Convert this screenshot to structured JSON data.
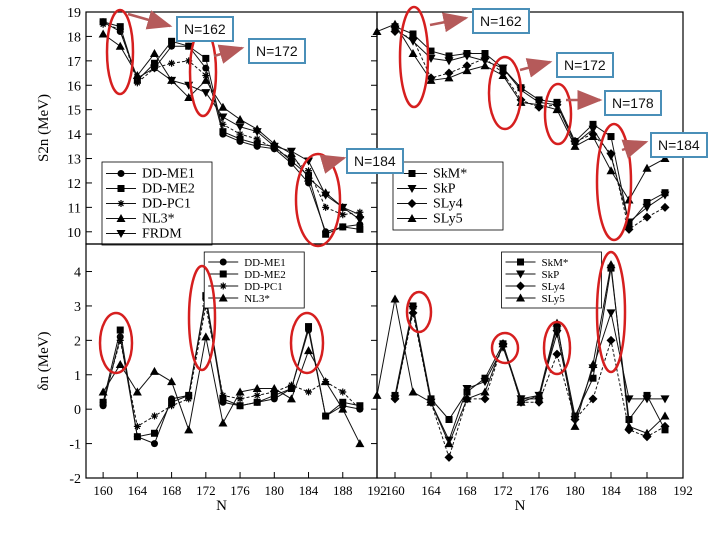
{
  "colors": {
    "ring": "#d61f1f",
    "arrow": "#b55a5a",
    "callout_border": "#4a8fb8"
  },
  "callouts": {
    "tl_162": "N=162",
    "tl_172": "N=172",
    "tl_184": "N=184",
    "tr_162": "N=162",
    "tr_172": "N=172",
    "tr_178": "N=178",
    "tr_184": "N=184"
  },
  "chart_data": [
    {
      "id": "top-left",
      "type": "line",
      "ylabel": "S2n (MeV)",
      "xlabel": "",
      "xlim": [
        158,
        192
      ],
      "ylim": [
        9.5,
        19
      ],
      "xticks": [],
      "yticks": [
        10,
        11,
        12,
        13,
        14,
        15,
        16,
        17,
        18,
        19
      ],
      "legend_position": "bottom-left",
      "series": [
        {
          "name": "DD-ME1",
          "marker": "circle",
          "x": [
            160,
            162,
            164,
            166,
            168,
            170,
            172,
            174,
            176,
            178,
            180,
            182,
            184,
            186,
            188,
            190
          ],
          "values": [
            18.6,
            18.2,
            16.3,
            16.7,
            17.6,
            17.6,
            16.7,
            14.0,
            13.7,
            13.5,
            13.4,
            12.8,
            12.0,
            10.0,
            10.2,
            10.3
          ]
        },
        {
          "name": "DD-ME2",
          "marker": "square",
          "x": [
            160,
            162,
            164,
            166,
            168,
            170,
            172,
            174,
            176,
            178,
            180,
            182,
            184,
            186,
            188,
            190
          ],
          "values": [
            18.6,
            18.4,
            16.2,
            16.9,
            17.8,
            17.6,
            17.1,
            14.1,
            13.8,
            13.6,
            13.5,
            12.9,
            12.3,
            9.9,
            10.2,
            10.1
          ]
        },
        {
          "name": "DD-PC1",
          "marker": "star",
          "x": [
            160,
            162,
            164,
            166,
            168,
            170,
            172,
            174,
            176,
            178,
            180,
            182,
            184,
            186,
            188,
            190
          ],
          "values": [
            18.5,
            18.3,
            16.1,
            16.7,
            16.9,
            17.0,
            16.4,
            14.4,
            14.0,
            13.8,
            13.4,
            13.0,
            12.5,
            11.0,
            10.7,
            10.8
          ]
        },
        {
          "name": "NL3*",
          "marker": "triangle",
          "x": [
            160,
            162,
            164,
            166,
            168,
            170,
            172,
            174,
            176,
            178,
            180,
            182,
            184,
            186,
            188,
            190
          ],
          "values": [
            18.1,
            17.6,
            16.4,
            17.3,
            16.2,
            15.5,
            16.2,
            15.1,
            14.6,
            14.2,
            13.6,
            13.2,
            12.2,
            11.6,
            11.0,
            10.7
          ]
        },
        {
          "name": "FRDM",
          "marker": "triangle-down",
          "x": [
            166,
            168,
            170,
            172,
            174,
            176,
            178,
            180,
            182,
            184,
            186,
            188,
            190
          ],
          "values": [
            16.7,
            16.2,
            16.0,
            15.7,
            14.7,
            14.3,
            14.1,
            13.5,
            13.3,
            12.9,
            11.5,
            11.0,
            10.5
          ]
        }
      ]
    },
    {
      "id": "top-right",
      "type": "line",
      "ylabel": "",
      "xlabel": "",
      "xlim": [
        158,
        192
      ],
      "ylim": [
        9.5,
        19
      ],
      "xticks": [],
      "yticks": [],
      "legend_position": "bottom-left",
      "series": [
        {
          "name": "SkM*",
          "marker": "square",
          "x": [
            160,
            162,
            164,
            166,
            168,
            170,
            172,
            174,
            176,
            178,
            180,
            182,
            184,
            186,
            188,
            190
          ],
          "values": [
            18.4,
            18.1,
            17.4,
            17.2,
            17.3,
            17.3,
            16.7,
            15.9,
            15.4,
            15.3,
            13.7,
            14.4,
            13.9,
            10.3,
            11.2,
            11.6
          ]
        },
        {
          "name": "SkP",
          "marker": "triangle-down",
          "x": [
            160,
            162,
            164,
            166,
            168,
            170,
            172,
            174,
            176,
            178,
            180,
            182,
            184,
            186,
            188,
            190
          ],
          "values": [
            18.3,
            17.8,
            17.1,
            17.0,
            17.2,
            17.0,
            16.7,
            15.8,
            15.3,
            15.2,
            13.6,
            14.2,
            13.1,
            10.4,
            11.0,
            11.5
          ]
        },
        {
          "name": "SLy4",
          "marker": "diamond",
          "x": [
            160,
            162,
            164,
            166,
            168,
            170,
            172,
            174,
            176,
            178,
            180,
            182,
            184,
            186,
            188,
            190
          ],
          "values": [
            18.2,
            17.9,
            16.3,
            16.5,
            16.8,
            17.1,
            16.5,
            15.4,
            15.1,
            15.2,
            13.7,
            14.0,
            13.2,
            10.1,
            10.6,
            11.0
          ]
        },
        {
          "name": "SLy5",
          "marker": "triangle",
          "x": [
            158,
            160,
            162,
            164,
            166,
            168,
            170,
            172,
            174,
            176,
            178,
            180,
            182,
            184,
            186,
            188,
            190
          ],
          "values": [
            18.2,
            18.5,
            17.3,
            16.2,
            16.3,
            16.6,
            16.8,
            16.4,
            15.3,
            15.2,
            15.0,
            13.5,
            13.9,
            12.5,
            11.3,
            12.6,
            13.0
          ]
        }
      ]
    },
    {
      "id": "bottom-left",
      "type": "line",
      "ylabel": "δn (MeV)",
      "xlabel": "N",
      "xlim": [
        158,
        192
      ],
      "ylim": [
        -2,
        4.8
      ],
      "xticks": [
        160,
        164,
        168,
        172,
        176,
        180,
        184,
        188,
        192
      ],
      "yticks": [
        -2,
        -1,
        0,
        1,
        2,
        3,
        4
      ],
      "legend_position": "top-center",
      "series": [
        {
          "name": "DD-ME1",
          "marker": "circle",
          "x": [
            160,
            162,
            164,
            166,
            168,
            170,
            172,
            174,
            176,
            178,
            180,
            182,
            184,
            186,
            188,
            190
          ],
          "values": [
            0.1,
            2.1,
            -0.8,
            -1.0,
            0.3,
            0.4,
            3.2,
            0.2,
            0.1,
            0.2,
            0.3,
            0.6,
            2.3,
            -0.2,
            0.1,
            0.0
          ]
        },
        {
          "name": "DD-ME2",
          "marker": "square",
          "x": [
            160,
            162,
            164,
            166,
            168,
            170,
            172,
            174,
            176,
            178,
            180,
            182,
            184,
            186,
            188,
            190
          ],
          "values": [
            0.2,
            2.3,
            -0.8,
            -0.7,
            0.2,
            0.4,
            3.3,
            0.3,
            0.1,
            0.2,
            0.4,
            0.6,
            2.4,
            -0.2,
            0.2,
            0.1
          ]
        },
        {
          "name": "DD-PC1",
          "marker": "star",
          "x": [
            160,
            162,
            164,
            166,
            168,
            170,
            172,
            174,
            176,
            178,
            180,
            182,
            184,
            186,
            188,
            190
          ],
          "values": [
            0.2,
            2.0,
            -0.5,
            -0.2,
            0.1,
            0.3,
            3.0,
            0.4,
            0.3,
            0.4,
            0.5,
            0.7,
            0.5,
            0.8,
            0.5,
            0.0
          ]
        },
        {
          "name": "NL3*",
          "marker": "triangle",
          "x": [
            160,
            162,
            164,
            166,
            168,
            170,
            172,
            174,
            176,
            178,
            180,
            182,
            184,
            186,
            188,
            190
          ],
          "values": [
            0.5,
            1.3,
            0.5,
            1.1,
            0.8,
            -0.6,
            2.1,
            -0.4,
            0.5,
            0.6,
            0.6,
            0.3,
            1.7,
            0.8,
            0.0,
            -1.0
          ]
        }
      ]
    },
    {
      "id": "bottom-right",
      "type": "line",
      "ylabel": "",
      "xlabel": "N",
      "xlim": [
        158,
        192
      ],
      "ylim": [
        -2,
        4.8
      ],
      "xticks": [
        160,
        164,
        168,
        172,
        176,
        180,
        184,
        188,
        192
      ],
      "yticks": [],
      "legend_position": "top-center",
      "series": [
        {
          "name": "SkM*",
          "marker": "square",
          "x": [
            160,
            162,
            164,
            166,
            168,
            170,
            172,
            174,
            176,
            178,
            180,
            182,
            184,
            186,
            188,
            190
          ],
          "values": [
            0.4,
            3.0,
            0.3,
            -0.3,
            0.5,
            0.9,
            1.9,
            0.3,
            0.3,
            2.4,
            -0.2,
            0.9,
            4.1,
            -0.3,
            0.4,
            -0.6
          ]
        },
        {
          "name": "SkP",
          "marker": "triangle-down",
          "x": [
            160,
            162,
            164,
            166,
            168,
            170,
            172,
            174,
            176,
            178,
            180,
            182,
            184,
            186,
            188,
            190
          ],
          "values": [
            0.3,
            2.9,
            0.2,
            -0.9,
            0.6,
            0.8,
            1.8,
            0.3,
            0.4,
            2.2,
            -0.3,
            1.2,
            2.8,
            0.3,
            0.3,
            0.3
          ]
        },
        {
          "name": "SLy4",
          "marker": "diamond",
          "x": [
            160,
            162,
            164,
            166,
            168,
            170,
            172,
            174,
            176,
            178,
            180,
            182,
            184,
            186,
            188,
            190
          ],
          "values": [
            0.3,
            2.8,
            0.2,
            -1.4,
            0.3,
            0.3,
            1.9,
            0.2,
            0.2,
            1.6,
            -0.3,
            0.3,
            2.0,
            -0.6,
            -0.8,
            -0.5
          ]
        },
        {
          "name": "SLy5",
          "marker": "triangle",
          "x": [
            158,
            160,
            162,
            164,
            166,
            168,
            170,
            172,
            174,
            176,
            178,
            180,
            182,
            184,
            186,
            188,
            190
          ],
          "values": [
            0.4,
            3.2,
            0.5,
            0.2,
            -1.0,
            0.3,
            0.5,
            1.9,
            0.2,
            0.4,
            2.5,
            -0.5,
            1.3,
            4.2,
            -0.5,
            -0.7,
            -0.2
          ]
        }
      ]
    }
  ]
}
